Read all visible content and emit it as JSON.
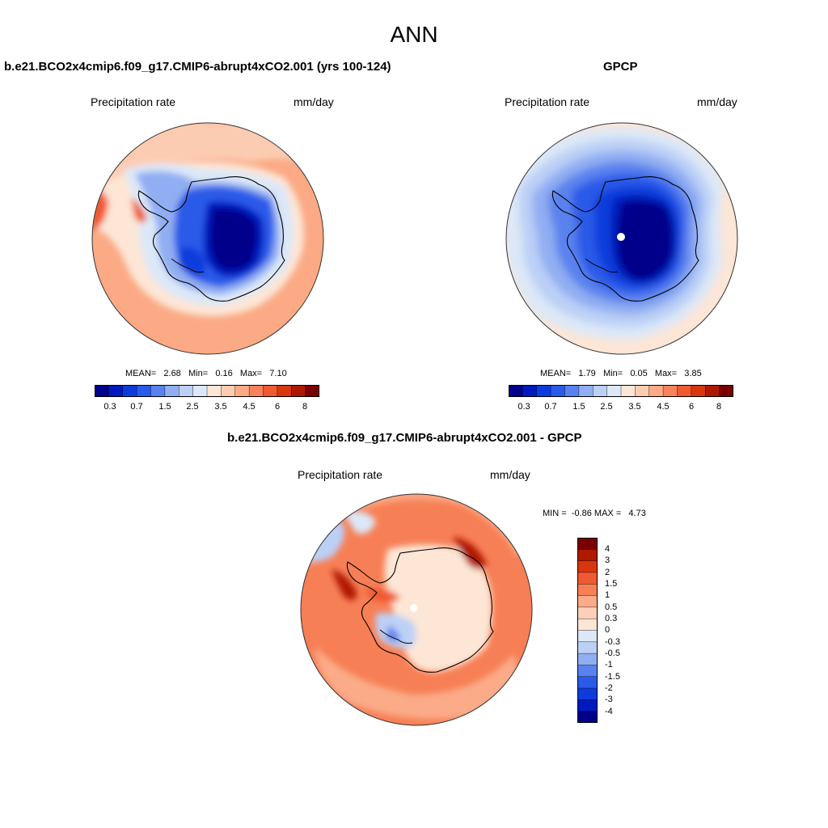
{
  "figure": {
    "title": "ANN"
  },
  "palette": {
    "abs": [
      "#00008a",
      "#001abf",
      "#0e3cdc",
      "#2a5ae8",
      "#5a82ee",
      "#91aef2",
      "#bcd0f6",
      "#dce8f8",
      "#fde6d6",
      "#fcccb2",
      "#fbaa85",
      "#f8825c",
      "#ef5a32",
      "#d8360f",
      "#ad1800",
      "#7a0000"
    ],
    "diff": [
      "#7a0000",
      "#b01800",
      "#d8360f",
      "#ef5a32",
      "#f77f55",
      "#fbab88",
      "#fcd0b8",
      "#fde6d6",
      "#dce8f8",
      "#bcd0f6",
      "#91aef2",
      "#5a82ee",
      "#2a5ae8",
      "#0e3cdc",
      "#001abf",
      "#00008a"
    ],
    "coast": "#000000",
    "background": "#ffffff"
  },
  "panels": {
    "model": {
      "title": "b.e21.BCO2x4cmip6.f09_g17.CMIP6-abrupt4xCO2.001 (yrs 100-124)",
      "variable": "Precipitation rate",
      "units": "mm/day",
      "mean_label": "MEAN=",
      "mean": "2.68",
      "min_label": "Min=",
      "min": "0.16",
      "max_label": "Max=",
      "max": "7.10"
    },
    "obs": {
      "title": "GPCP",
      "variable": "Precipitation rate",
      "units": "mm/day",
      "mean_label": "MEAN=",
      "mean": "1.79",
      "min_label": "Min=",
      "min": "0.05",
      "max_label": "Max=",
      "max": "3.85"
    },
    "diff": {
      "title": "b.e21.BCO2x4cmip6.f09_g17.CMIP6-abrupt4xCO2.001 - GPCP",
      "variable": "Precipitation rate",
      "units": "mm/day",
      "min_label": "MIN =",
      "min": "-0.86",
      "max_label": "MAX =",
      "max": "4.73"
    }
  },
  "colorbar_abs": {
    "labels": [
      "0.3",
      "0.7",
      "1.5",
      "2.5",
      "3.5",
      "4.5",
      "6",
      "8"
    ]
  },
  "colorbar_diff": {
    "labels": [
      "4",
      "3",
      "2",
      "1.5",
      "1",
      "0.5",
      "0.3",
      "0",
      "-0.3",
      "-0.5",
      "-1",
      "-1.5",
      "-2",
      "-3",
      "-4"
    ]
  }
}
